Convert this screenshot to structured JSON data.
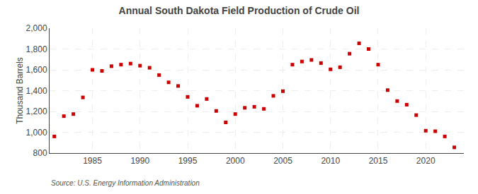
{
  "chart_data": {
    "type": "scatter",
    "title": "Annual South Dakota Field Production of Crude Oil",
    "ylabel": "Thousand Barrels",
    "annotations": [
      "Source: U.S. Energy Information Administration"
    ],
    "x": [
      1981,
      1982,
      1983,
      1984,
      1985,
      1986,
      1987,
      1988,
      1989,
      1990,
      1991,
      1992,
      1993,
      1994,
      1995,
      1996,
      1997,
      1998,
      1999,
      2000,
      2001,
      2002,
      2003,
      2004,
      2005,
      2006,
      2007,
      2008,
      2009,
      2010,
      2011,
      2012,
      2013,
      2014,
      2015,
      2016,
      2017,
      2018,
      2019,
      2020,
      2021,
      2022,
      2023
    ],
    "values": [
      960,
      1155,
      1175,
      1335,
      1600,
      1590,
      1635,
      1650,
      1660,
      1640,
      1620,
      1550,
      1480,
      1445,
      1340,
      1255,
      1320,
      1205,
      1095,
      1175,
      1235,
      1245,
      1225,
      1350,
      1395,
      1650,
      1680,
      1695,
      1665,
      1605,
      1625,
      1755,
      1855,
      1800,
      1650,
      1405,
      1300,
      1265,
      1165,
      1015,
      1010,
      960,
      855
    ],
    "color": "#cc0000",
    "marker": "square",
    "xlim": [
      1980.5,
      2024
    ],
    "xticks": [
      1985,
      1990,
      1995,
      2000,
      2005,
      2010,
      2015,
      2020
    ],
    "ylim": [
      800,
      2000
    ],
    "yticks": [
      800,
      {
        "value": 1000,
        "label": "1,000"
      },
      {
        "value": 1200,
        "label": "1,200"
      },
      {
        "value": 1400,
        "label": "1,400"
      },
      {
        "value": 1600,
        "label": "1,600"
      },
      {
        "value": 1800,
        "label": "1,800"
      },
      {
        "value": 2000,
        "label": "2,000"
      }
    ],
    "grid": true
  }
}
